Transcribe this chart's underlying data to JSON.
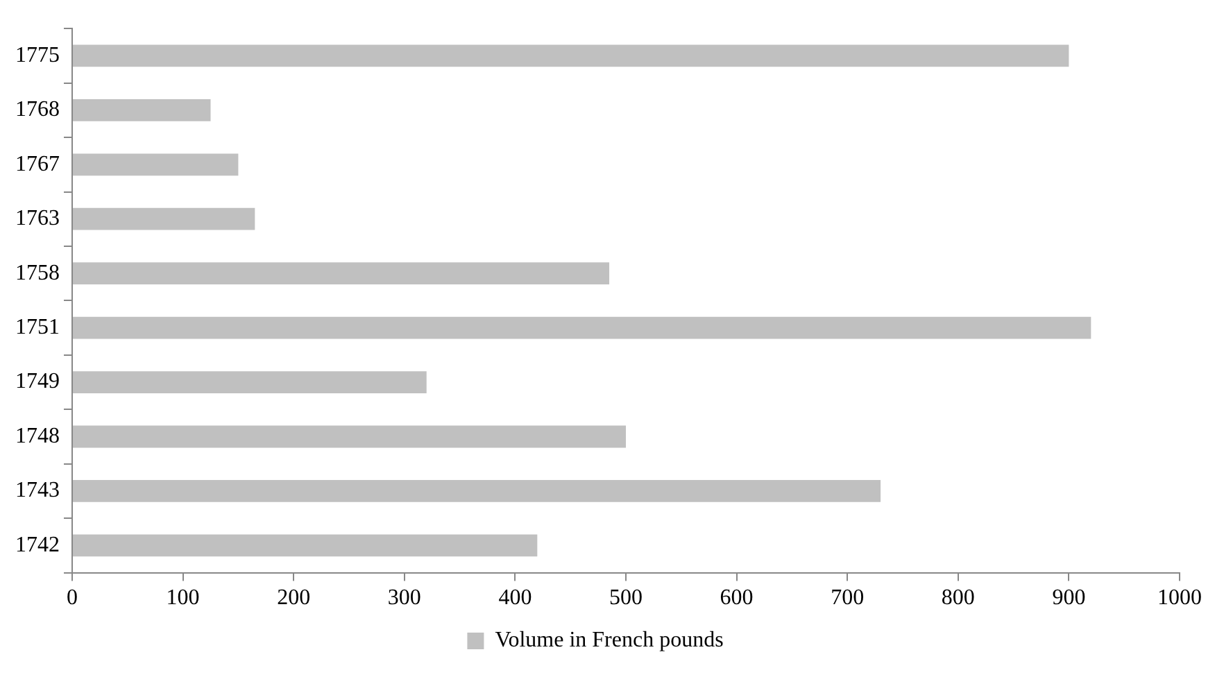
{
  "chart_data": {
    "type": "bar",
    "orientation": "horizontal",
    "categories": [
      "1775",
      "1768",
      "1767",
      "1763",
      "1758",
      "1751",
      "1749",
      "1748",
      "1743",
      "1742"
    ],
    "series": [
      {
        "name": "Volume in French pounds",
        "color": "#c0c0c0",
        "values": [
          900,
          125,
          150,
          165,
          485,
          920,
          320,
          500,
          730,
          420
        ]
      }
    ],
    "xlim": [
      0,
      1000
    ],
    "xticks": [
      0,
      100,
      200,
      300,
      400,
      500,
      600,
      700,
      800,
      900,
      1000
    ],
    "grid": false,
    "legend": "bottom"
  }
}
